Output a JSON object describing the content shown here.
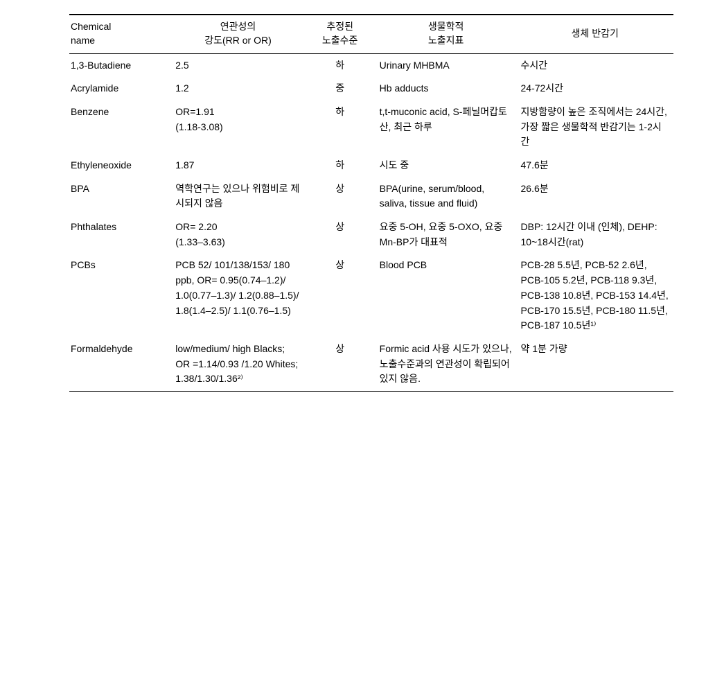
{
  "table": {
    "headers": {
      "chemical": "Chemical\nname",
      "rr": "연관성의\n강도(RR or OR)",
      "level": "추정된\n노출수준",
      "biomarker": "생물학적\n노출지표",
      "halflife": "생체 반감기"
    },
    "rows": [
      {
        "chemical": "1,3-Butadiene",
        "rr": "2.5",
        "level": "하",
        "biomarker": "Urinary MHBMA",
        "halflife": "수시간"
      },
      {
        "chemical": "Acrylamide",
        "rr": "1.2",
        "level": "중",
        "biomarker": "Hb adducts",
        "halflife": "24-72시간"
      },
      {
        "chemical": "Benzene",
        "rr": "OR=1.91\n(1.18-3.08)",
        "level": "하",
        "biomarker": "t,t-muconic acid, S-페닐머캅토산, 최근 하루",
        "halflife": "지방함량이 높은 조직에서는 24시간, 가장 짧은 생물학적 반감기는 1-2시간"
      },
      {
        "chemical": "Ethyleneoxide",
        "rr": "1.87",
        "level": "하",
        "biomarker": "시도 중",
        "halflife": "47.6분"
      },
      {
        "chemical": "BPA",
        "rr": "역학연구는 있으나 위험비로 제시되지 않음",
        "level": "상",
        "biomarker": "BPA(urine, serum/blood, saliva, tissue and fluid)",
        "halflife": "26.6분"
      },
      {
        "chemical": "Phthalates",
        "rr": "OR= 2.20\n(1.33–3.63)",
        "level": "상",
        "biomarker": "요중 5-OH, 요중 5-OXO, 요중 Mn-BP가 대표적",
        "halflife": "DBP: 12시간 이내 (인체), DEHP: 10~18시간(rat)"
      },
      {
        "chemical": "PCBs",
        "rr": "PCB 52/ 101/138/153/ 180 ppb, OR= 0.95(0.74–1.2)/ 1.0(0.77–1.3)/ 1.2(0.88–1.5)/ 1.8(1.4–2.5)/ 1.1(0.76–1.5)",
        "level": "상",
        "biomarker": "Blood PCB",
        "halflife": "PCB-28 5.5년, PCB-52 2.6년, PCB-105 5.2년, PCB-118 9.3년, PCB-138 10.8년, PCB-153 14.4년, PCB-170 15.5년, PCB-180 11.5년, PCB-187 10.5년¹⁾"
      },
      {
        "chemical": "Formaldehyde",
        "rr": "low/medium/ high Blacks; OR =1.14/0.93 /1.20 Whites; 1.38/1.30/1.36²⁾",
        "level": "상",
        "biomarker": "Formic acid 사용 시도가 있으나, 노출수준과의 연관성이 확립되어 있지 않음.",
        "halflife": "약 1분 가량"
      }
    ]
  },
  "style": {
    "background_color": "#ffffff",
    "text_color": "#000000",
    "rule_color": "#000000",
    "font_size_pt": 11
  }
}
